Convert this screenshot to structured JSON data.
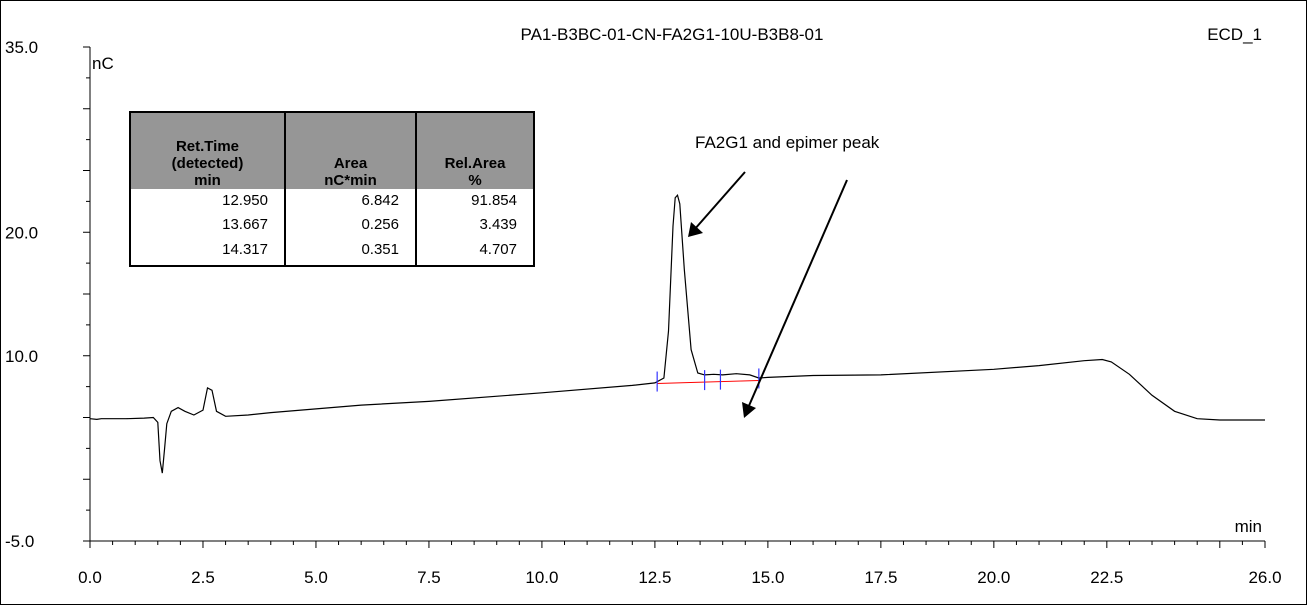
{
  "chart_data": {
    "type": "line",
    "title": "PA1-B3BC-01-CN-FA2G1-10U-B3B8-01",
    "channel": "ECD_1",
    "ylabel": "nC",
    "xlabel": "min",
    "xlim": [
      0.0,
      26.0
    ],
    "ylim": [
      -5.0,
      35.0
    ],
    "x_ticks": [
      "0.0",
      "2.5",
      "5.0",
      "7.5",
      "10.0",
      "12.5",
      "15.0",
      "17.5",
      "20.0",
      "22.5",
      "26.0"
    ],
    "y_ticks": [
      "-5.0",
      "10.0",
      "20.0",
      "35.0"
    ],
    "annotation": "FA2G1 and epimer peak",
    "series": [
      {
        "points": [
          [
            0.0,
            4.9
          ],
          [
            0.15,
            4.85
          ],
          [
            0.25,
            4.9
          ],
          [
            0.4,
            4.9
          ],
          [
            0.8,
            4.9
          ],
          [
            1.2,
            4.95
          ],
          [
            1.4,
            5.0
          ],
          [
            1.5,
            4.6
          ],
          [
            1.55,
            1.5
          ],
          [
            1.6,
            0.5
          ],
          [
            1.65,
            2.5
          ],
          [
            1.7,
            4.5
          ],
          [
            1.8,
            5.5
          ],
          [
            1.95,
            5.8
          ],
          [
            2.1,
            5.5
          ],
          [
            2.3,
            5.2
          ],
          [
            2.5,
            5.6
          ],
          [
            2.6,
            7.4
          ],
          [
            2.7,
            7.2
          ],
          [
            2.8,
            5.5
          ],
          [
            3.0,
            5.1
          ],
          [
            3.5,
            5.2
          ],
          [
            4.0,
            5.4
          ],
          [
            5.0,
            5.7
          ],
          [
            6.0,
            6.0
          ],
          [
            7.5,
            6.3
          ],
          [
            10.0,
            7.0
          ],
          [
            12.0,
            7.6
          ],
          [
            12.5,
            7.8
          ],
          [
            12.7,
            8.2
          ],
          [
            12.8,
            12.0
          ],
          [
            12.9,
            20.5
          ],
          [
            12.95,
            22.8
          ],
          [
            13.0,
            23.0
          ],
          [
            13.05,
            22.3
          ],
          [
            13.15,
            17.0
          ],
          [
            13.3,
            10.5
          ],
          [
            13.45,
            8.6
          ],
          [
            13.6,
            8.45
          ],
          [
            13.8,
            8.5
          ],
          [
            14.0,
            8.45
          ],
          [
            14.3,
            8.55
          ],
          [
            14.6,
            8.45
          ],
          [
            14.8,
            8.2
          ],
          [
            15.0,
            8.25
          ],
          [
            16.0,
            8.4
          ],
          [
            17.5,
            8.45
          ],
          [
            20.0,
            8.9
          ],
          [
            21.0,
            9.2
          ],
          [
            22.0,
            9.6
          ],
          [
            22.4,
            9.7
          ],
          [
            22.6,
            9.5
          ],
          [
            23.0,
            8.5
          ],
          [
            23.5,
            6.8
          ],
          [
            24.0,
            5.5
          ],
          [
            24.5,
            4.9
          ],
          [
            25.0,
            4.8
          ],
          [
            26.0,
            4.8
          ]
        ]
      }
    ],
    "baseline": [
      [
        12.55,
        7.75
      ],
      [
        14.8,
        8.0
      ]
    ],
    "peak_markers": [
      12.55,
      13.6,
      13.95,
      14.8
    ],
    "table": {
      "headers": [
        [
          "Ret.Time",
          "(detected)",
          "min"
        ],
        [
          "Area",
          "nC*min"
        ],
        [
          "Rel.Area",
          "%"
        ]
      ],
      "rows": [
        [
          "12.950",
          "6.842",
          "91.854"
        ],
        [
          "13.667",
          "0.256",
          "3.439"
        ],
        [
          "14.317",
          "0.351",
          "4.707"
        ]
      ]
    }
  }
}
